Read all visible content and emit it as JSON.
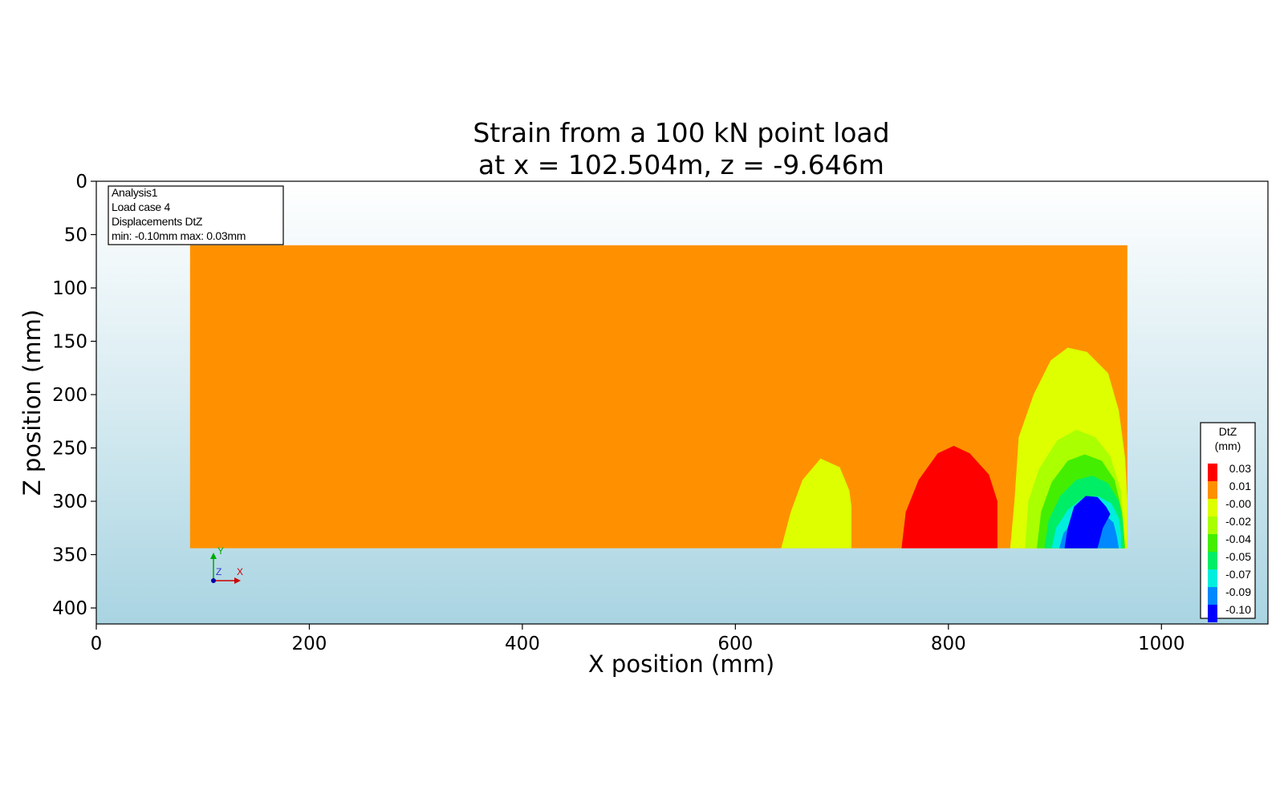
{
  "chart_data": {
    "type": "heatmap",
    "title_line1": "Strain from a 100 kN point load",
    "title_line2": "at x = 102.504m, z = -9.646m",
    "xlabel": "X position (mm)",
    "ylabel": "Z position (mm)",
    "xlim": [
      0,
      1100
    ],
    "ylim": [
      415,
      0
    ],
    "y_inverted": true,
    "x_ticks": [
      0,
      200,
      400,
      600,
      800,
      1000
    ],
    "y_ticks": [
      0,
      50,
      100,
      150,
      200,
      250,
      300,
      350,
      400
    ],
    "grid": false,
    "info_box": {
      "line1": "Analysis1",
      "line2": "Load case 4",
      "line3": "Displacements DtZ",
      "line4": "min: -0.10mm max:  0.03mm"
    },
    "axis_triad": {
      "y": "Y",
      "z": "Z",
      "x": "X"
    },
    "legend": {
      "title_line1": "DtZ",
      "title_line2": "(mm)",
      "placement": "right",
      "levels": [
        {
          "label": "0.03",
          "color": "#ff0000"
        },
        {
          "label": "0.01",
          "color": "#ff9100"
        },
        {
          "label": "-0.00",
          "color": "#ddff00"
        },
        {
          "label": "-0.02",
          "color": "#aaff00"
        },
        {
          "label": "-0.04",
          "color": "#44ee00"
        },
        {
          "label": "-0.05",
          "color": "#00ee66"
        },
        {
          "label": "-0.07",
          "color": "#00eedd"
        },
        {
          "label": "-0.09",
          "color": "#0088ff"
        },
        {
          "label": "-0.10",
          "color": "#0000ff"
        }
      ]
    },
    "domain": {
      "x": [
        88,
        968
      ],
      "z": [
        60,
        344
      ],
      "base_color": "#ff9100"
    },
    "contours": [
      {
        "name": "yellow lobe A",
        "color": "#ddff00",
        "points": [
          [
            643,
            344
          ],
          [
            652,
            310
          ],
          [
            663,
            280
          ],
          [
            680,
            260
          ],
          [
            698,
            268
          ],
          [
            707,
            290
          ],
          [
            709,
            305
          ],
          [
            709,
            344
          ]
        ]
      },
      {
        "name": "red lobe",
        "color": "#ff0000",
        "points": [
          [
            756,
            344
          ],
          [
            760,
            310
          ],
          [
            772,
            280
          ],
          [
            790,
            255
          ],
          [
            805,
            248
          ],
          [
            820,
            255
          ],
          [
            838,
            275
          ],
          [
            846,
            300
          ],
          [
            846,
            344
          ]
        ]
      },
      {
        "name": "yellow lobe C",
        "color": "#ddff00",
        "points": [
          [
            858,
            344
          ],
          [
            862,
            300
          ],
          [
            866,
            240
          ],
          [
            880,
            200
          ],
          [
            896,
            168
          ],
          [
            912,
            156
          ],
          [
            930,
            160
          ],
          [
            950,
            180
          ],
          [
            960,
            215
          ],
          [
            966,
            260
          ],
          [
            968,
            300
          ],
          [
            968,
            344
          ]
        ]
      },
      {
        "name": "green level 1",
        "color": "#aaff00",
        "points": [
          [
            872,
            344
          ],
          [
            875,
            300
          ],
          [
            885,
            270
          ],
          [
            902,
            243
          ],
          [
            920,
            233
          ],
          [
            938,
            240
          ],
          [
            952,
            258
          ],
          [
            962,
            290
          ],
          [
            966,
            344
          ]
        ]
      },
      {
        "name": "green level 2",
        "color": "#44ee00",
        "points": [
          [
            883,
            344
          ],
          [
            887,
            310
          ],
          [
            897,
            282
          ],
          [
            912,
            262
          ],
          [
            928,
            256
          ],
          [
            944,
            262
          ],
          [
            956,
            280
          ],
          [
            963,
            310
          ],
          [
            966,
            344
          ]
        ]
      },
      {
        "name": "green level 3",
        "color": "#00ee66",
        "points": [
          [
            890,
            344
          ],
          [
            894,
            318
          ],
          [
            905,
            295
          ],
          [
            920,
            280
          ],
          [
            935,
            276
          ],
          [
            950,
            283
          ],
          [
            960,
            300
          ],
          [
            964,
            320
          ],
          [
            965,
            344
          ]
        ]
      },
      {
        "name": "cyan level",
        "color": "#00eedd",
        "points": [
          [
            897,
            344
          ],
          [
            901,
            325
          ],
          [
            912,
            308
          ],
          [
            926,
            297
          ],
          [
            940,
            295
          ],
          [
            953,
            302
          ],
          [
            960,
            316
          ],
          [
            962,
            330
          ],
          [
            962,
            344
          ]
        ]
      },
      {
        "name": "light blue level",
        "color": "#0088ff",
        "points": [
          [
            904,
            344
          ],
          [
            908,
            330
          ],
          [
            918,
            318
          ],
          [
            931,
            310
          ],
          [
            944,
            310
          ],
          [
            955,
            320
          ],
          [
            958,
            332
          ],
          [
            960,
            344
          ]
        ]
      },
      {
        "name": "dark blue core",
        "color": "#0000ff",
        "points": [
          [
            909,
            344
          ],
          [
            912,
            325
          ],
          [
            918,
            305
          ],
          [
            929,
            295
          ],
          [
            940,
            296
          ],
          [
            948,
            305
          ],
          [
            952,
            312
          ],
          [
            945,
            325
          ],
          [
            940,
            344
          ]
        ]
      }
    ]
  }
}
